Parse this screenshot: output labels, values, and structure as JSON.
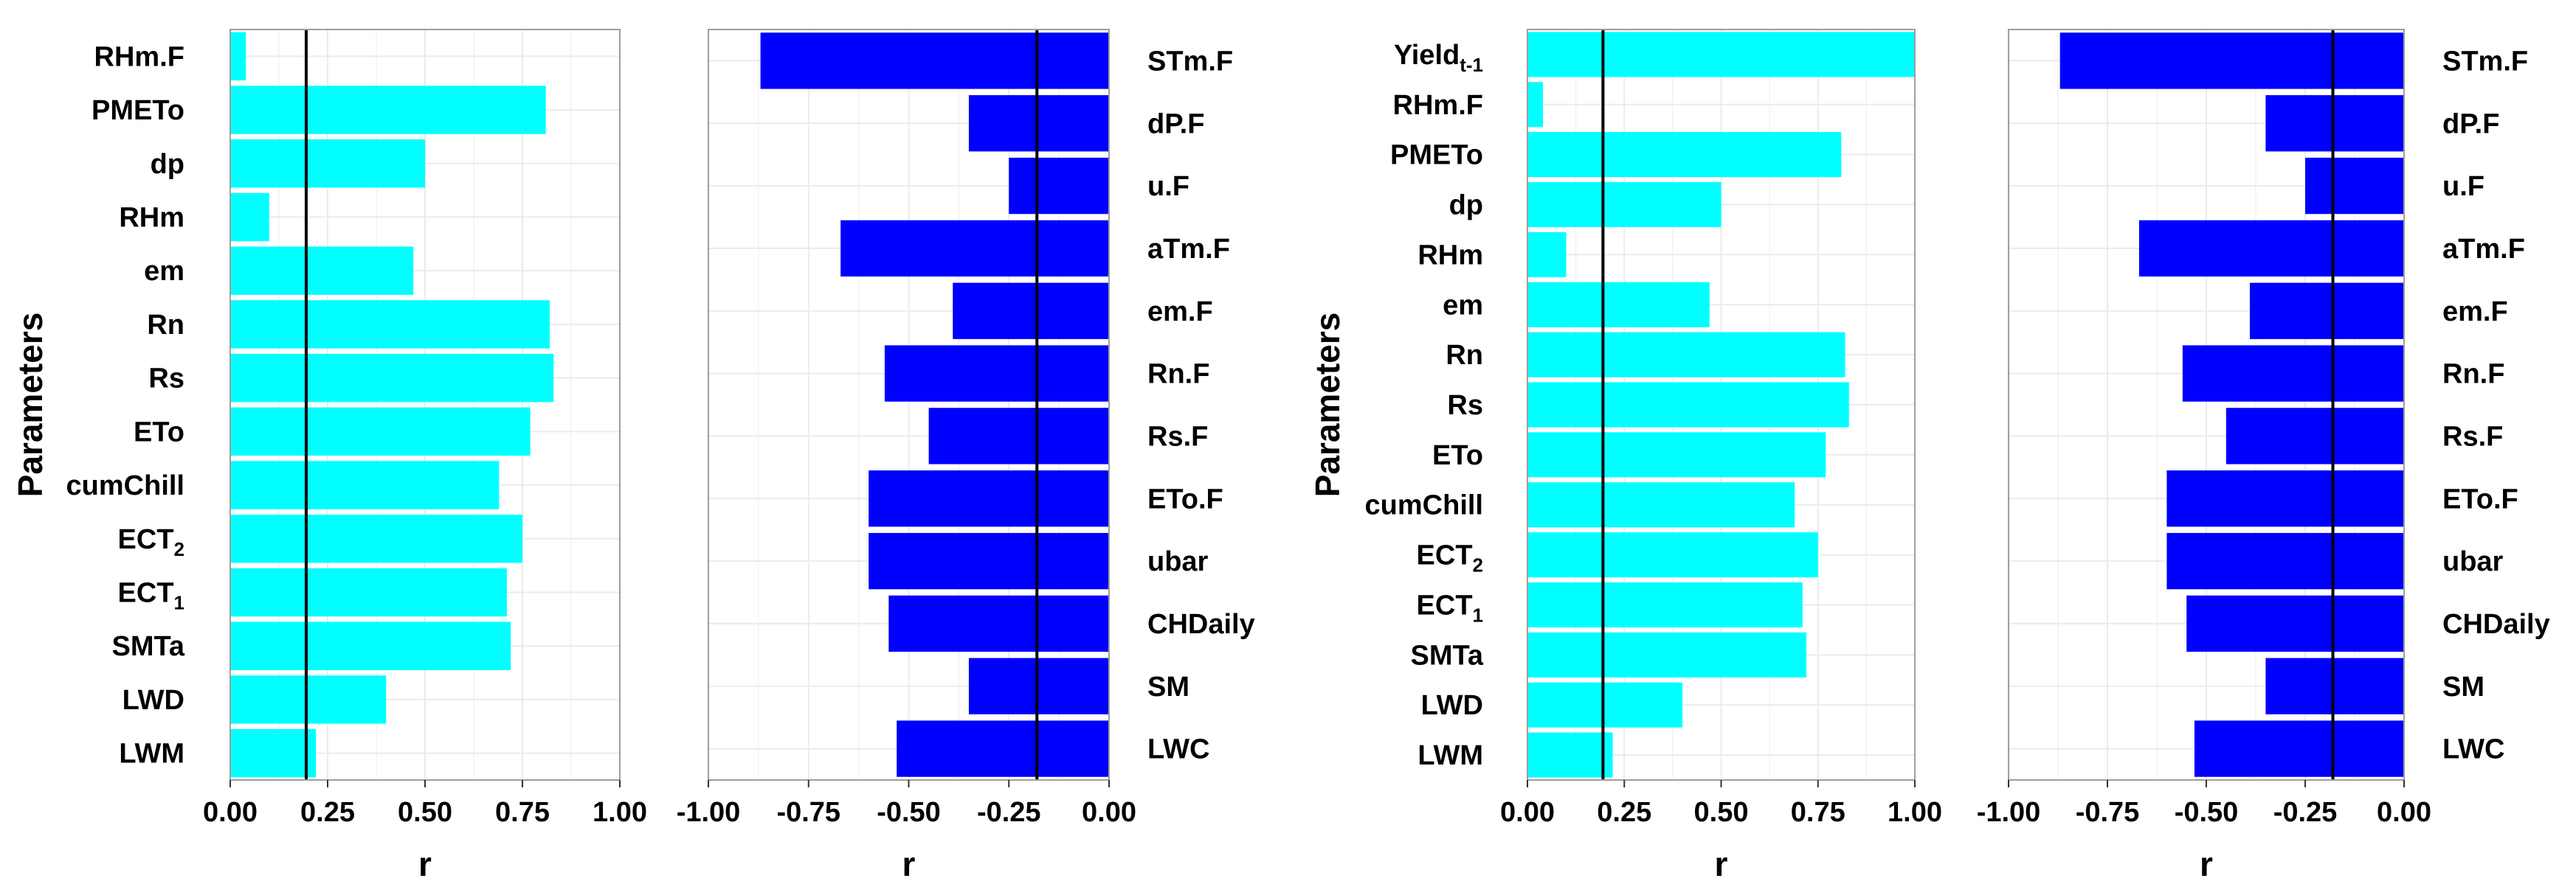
{
  "colors": {
    "positive_bar": "#00FFFF",
    "negative_bar": "#0000FF",
    "grid": "#EBEBEB",
    "reference_line": "#000000",
    "panel_border": "#9E9E9E",
    "text": "#000000"
  },
  "axis_labels": {
    "y_title": "Parameters",
    "x_title": "r"
  },
  "chart_data": [
    {
      "type": "bar",
      "orientation": "horizontal",
      "panel": "A",
      "categories": [
        {
          "label": "RHm.F"
        },
        {
          "label": "PMETo"
        },
        {
          "label": "dp"
        },
        {
          "label": "RHm"
        },
        {
          "label": "em"
        },
        {
          "label": "Rn"
        },
        {
          "label": "Rs"
        },
        {
          "label": "ETo"
        },
        {
          "label": "cumChill"
        },
        {
          "label": "ECT",
          "sub": "2"
        },
        {
          "label": "ECT",
          "sub": "1"
        },
        {
          "label": "SMTa"
        },
        {
          "label": "LWD"
        },
        {
          "label": "LWM"
        }
      ],
      "values": [
        0.04,
        0.81,
        0.5,
        0.1,
        0.47,
        0.82,
        0.83,
        0.77,
        0.69,
        0.75,
        0.71,
        0.72,
        0.4,
        0.22
      ],
      "xlim": [
        0,
        1
      ],
      "ticks": [
        "0.00",
        "0.25",
        "0.50",
        "0.75",
        "1.00"
      ],
      "tick_values": [
        0,
        0.25,
        0.5,
        0.75,
        1
      ],
      "reference_line": 0.195,
      "ylabel": "Parameters",
      "xlabel": "r",
      "label_side": "left"
    },
    {
      "type": "bar",
      "orientation": "horizontal",
      "panel": "B",
      "categories": [
        {
          "label": "STm.F"
        },
        {
          "label": "dP.F"
        },
        {
          "label": "u.F"
        },
        {
          "label": "aTm.F"
        },
        {
          "label": "em.F"
        },
        {
          "label": "Rn.F"
        },
        {
          "label": "Rs.F"
        },
        {
          "label": "ETo.F"
        },
        {
          "label": "ubar"
        },
        {
          "label": "CHDaily"
        },
        {
          "label": "SM"
        },
        {
          "label": "LWC"
        }
      ],
      "values": [
        -0.87,
        -0.35,
        -0.25,
        -0.67,
        -0.39,
        -0.56,
        -0.45,
        -0.6,
        -0.6,
        -0.55,
        -0.35,
        -0.53
      ],
      "xlim": [
        -1,
        0
      ],
      "ticks": [
        "-1.00",
        "-0.75",
        "-0.50",
        "-0.25",
        "0.00"
      ],
      "tick_values": [
        -1,
        -0.75,
        -0.5,
        -0.25,
        0
      ],
      "reference_line": -0.18,
      "ylabel": "",
      "xlabel": "r",
      "label_side": "right"
    },
    {
      "type": "bar",
      "orientation": "horizontal",
      "panel": "C",
      "categories": [
        {
          "label": "Yield",
          "sub": "t-1"
        },
        {
          "label": "RHm.F"
        },
        {
          "label": "PMETo"
        },
        {
          "label": "dp"
        },
        {
          "label": "RHm"
        },
        {
          "label": "em"
        },
        {
          "label": "Rn"
        },
        {
          "label": "Rs"
        },
        {
          "label": "ETo"
        },
        {
          "label": "cumChill"
        },
        {
          "label": "ECT",
          "sub": "2"
        },
        {
          "label": "ECT",
          "sub": "1"
        },
        {
          "label": "SMTa"
        },
        {
          "label": "LWD"
        },
        {
          "label": "LWM"
        }
      ],
      "values": [
        1.0,
        0.04,
        0.81,
        0.5,
        0.1,
        0.47,
        0.82,
        0.83,
        0.77,
        0.69,
        0.75,
        0.71,
        0.72,
        0.4,
        0.22
      ],
      "xlim": [
        0,
        1
      ],
      "ticks": [
        "0.00",
        "0.25",
        "0.50",
        "0.75",
        "1.00"
      ],
      "tick_values": [
        0,
        0.25,
        0.5,
        0.75,
        1
      ],
      "reference_line": 0.195,
      "ylabel": "Parameters",
      "xlabel": "r",
      "label_side": "left"
    },
    {
      "type": "bar",
      "orientation": "horizontal",
      "panel": "D",
      "categories": [
        {
          "label": "STm.F"
        },
        {
          "label": "dP.F"
        },
        {
          "label": "u.F"
        },
        {
          "label": "aTm.F"
        },
        {
          "label": "em.F"
        },
        {
          "label": "Rn.F"
        },
        {
          "label": "Rs.F"
        },
        {
          "label": "ETo.F"
        },
        {
          "label": "ubar"
        },
        {
          "label": "CHDaily"
        },
        {
          "label": "SM"
        },
        {
          "label": "LWC"
        }
      ],
      "values": [
        -0.87,
        -0.35,
        -0.25,
        -0.67,
        -0.39,
        -0.56,
        -0.45,
        -0.6,
        -0.6,
        -0.55,
        -0.35,
        -0.53
      ],
      "xlim": [
        -1,
        0
      ],
      "ticks": [
        "-1.00",
        "-0.75",
        "-0.50",
        "-0.25",
        "0.00"
      ],
      "tick_values": [
        -1,
        -0.75,
        -0.5,
        -0.25,
        0
      ],
      "reference_line": -0.18,
      "ylabel": "",
      "xlabel": "r",
      "label_side": "right"
    }
  ]
}
